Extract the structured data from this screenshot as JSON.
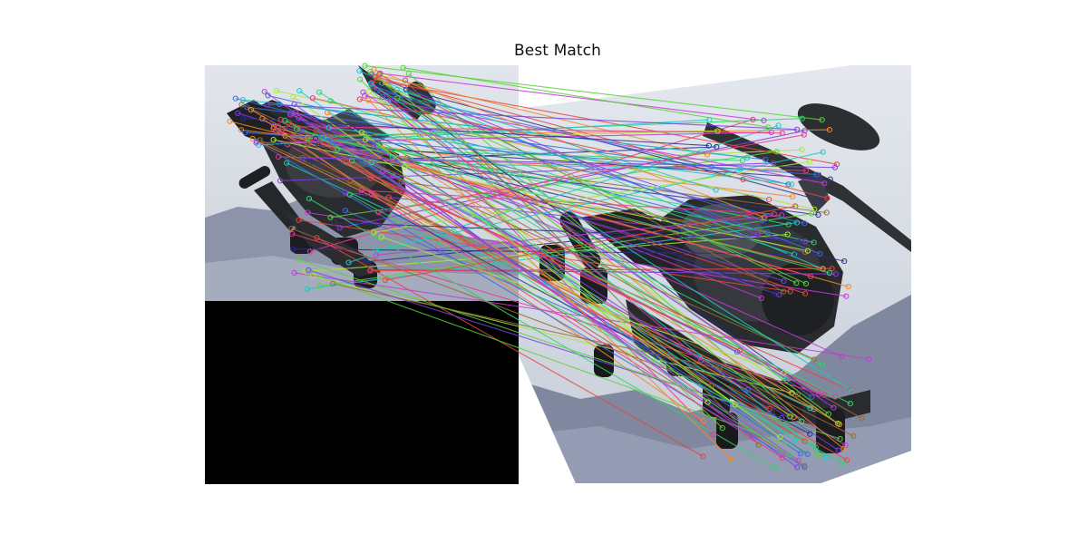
{
  "figure": {
    "title": "Best Match"
  },
  "scene": {
    "left_image_subject": "helicopter",
    "right_image_subject": "helicopter-rotated",
    "padding_color": "#000000",
    "sky_color": "#d3d9e1",
    "mountain_color": "#7f889f",
    "match_line_palette": [
      "#e8453c",
      "#3a6fd8",
      "#7b3fe0",
      "#c23bd6",
      "#2bd66b",
      "#1fc9c2",
      "#a7e83a",
      "#f08a2a",
      "#2a2e8c",
      "#e83a8e",
      "#5ad13b",
      "#9a6b3a"
    ]
  }
}
